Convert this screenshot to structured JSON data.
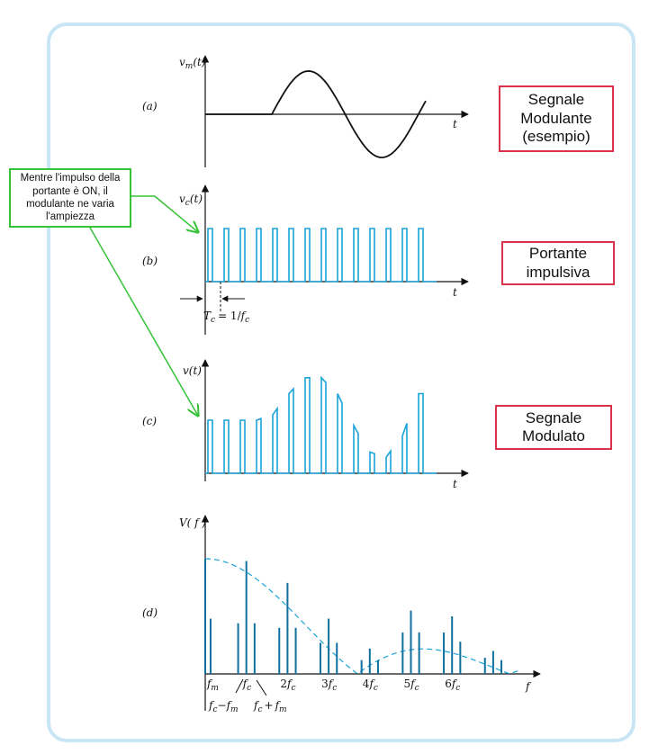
{
  "panels": {
    "a": {
      "tag": "(a)",
      "ylabel": "v",
      "ylabel_sub": "m",
      "ylabel_arg": "(t)",
      "xlabel": "t"
    },
    "b": {
      "tag": "(b)",
      "ylabel": "v",
      "ylabel_sub": "c",
      "ylabel_arg": "(t)",
      "xlabel": "t",
      "period_T": "T",
      "period_T_sub": "c",
      "period_eq": "= 1/",
      "period_f": "f",
      "period_f_sub": "c"
    },
    "c": {
      "tag": "(c)",
      "ylabel": "v",
      "ylabel_arg": "(t)",
      "xlabel": "t"
    },
    "d": {
      "tag": "(d)",
      "ylabel": "V( f )",
      "xlabel": "f"
    }
  },
  "boxes": {
    "modulante": [
      "Segnale",
      "Modulante",
      "(esempio)"
    ],
    "portante": [
      "Portante",
      "impulsiva"
    ],
    "modulato": [
      "Segnale",
      "Modulato"
    ]
  },
  "note": "Mentre l'impulso della portante è ON, il modulante ne varia l'ampiezza",
  "spectrum_ticks": [
    {
      "n": "",
      "v": "f",
      "s": "m"
    },
    {
      "n": "",
      "v": "f",
      "s": "c"
    },
    {
      "n": "2",
      "v": "f",
      "s": "c"
    },
    {
      "n": "3",
      "v": "f",
      "s": "c"
    },
    {
      "n": "4",
      "v": "f",
      "s": "c"
    },
    {
      "n": "5",
      "v": "f",
      "s": "c"
    },
    {
      "n": "6",
      "v": "f",
      "s": "c"
    }
  ],
  "sideband_labels": {
    "lower": {
      "v1": "f",
      "s1": "c",
      "op": "−",
      "v2": "f",
      "s2": "m"
    },
    "upper": {
      "v1": "f",
      "s1": "c",
      "op": "+",
      "v2": "f",
      "s2": "m"
    }
  },
  "colors": {
    "signal": "#1aa3d9",
    "spectrum": "#0f6f9e",
    "axis": "#111111",
    "box_border": "#d9324a",
    "note_border": "#35c335",
    "frame": "#c8e6f5"
  },
  "chart_data": {
    "type": "line",
    "pulse_count": 14,
    "modulated_amplitudes": [
      0.5,
      0.5,
      0.5,
      0.5,
      0.55,
      0.75,
      0.9,
      0.9,
      0.75,
      0.45,
      0.2,
      0.15,
      0.35,
      0.75
    ],
    "spectrum_lines": [
      {
        "f": 0.0,
        "a": 1.0
      },
      {
        "f": 0.13,
        "a": 0.48
      },
      {
        "f": 0.8,
        "a": 0.44
      },
      {
        "f": 1.0,
        "a": 0.98
      },
      {
        "f": 1.2,
        "a": 0.44
      },
      {
        "f": 1.8,
        "a": 0.4
      },
      {
        "f": 2.0,
        "a": 0.79
      },
      {
        "f": 2.2,
        "a": 0.4
      },
      {
        "f": 2.8,
        "a": 0.27
      },
      {
        "f": 3.0,
        "a": 0.48
      },
      {
        "f": 3.2,
        "a": 0.27
      },
      {
        "f": 3.8,
        "a": 0.12
      },
      {
        "f": 4.0,
        "a": 0.22
      },
      {
        "f": 4.2,
        "a": 0.12
      },
      {
        "f": 4.8,
        "a": 0.36
      },
      {
        "f": 5.0,
        "a": 0.55
      },
      {
        "f": 5.2,
        "a": 0.36
      },
      {
        "f": 5.8,
        "a": 0.36
      },
      {
        "f": 6.0,
        "a": 0.5
      },
      {
        "f": 6.2,
        "a": 0.28
      },
      {
        "f": 6.8,
        "a": 0.14
      },
      {
        "f": 7.0,
        "a": 0.2
      },
      {
        "f": 7.2,
        "a": 0.12
      }
    ]
  }
}
